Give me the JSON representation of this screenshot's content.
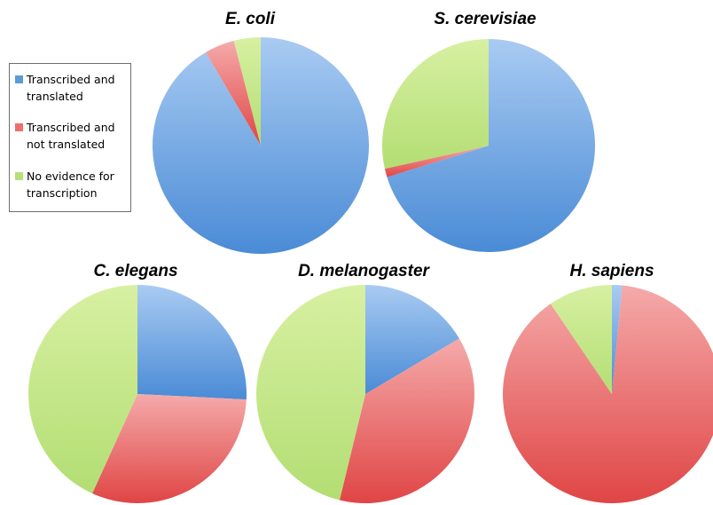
{
  "legend": {
    "items": [
      {
        "label": "Transcribed and translated",
        "color": "#5b9bd5"
      },
      {
        "label": "Transcribed and not translated",
        "color": "#ef6e6e"
      },
      {
        "label": "No evidence for transcription",
        "color": "#b5e07a"
      }
    ]
  },
  "chart_data": [
    {
      "type": "pie",
      "title": "E. coli",
      "labels": [
        "Transcribed and translated",
        "Transcribed and not translated",
        "No evidence for transcription"
      ],
      "values": [
        91.5,
        4.5,
        4.0
      ]
    },
    {
      "type": "pie",
      "title": "S. cerevisiae",
      "labels": [
        "Transcribed and translated",
        "Transcribed and not translated",
        "No evidence for transcription"
      ],
      "values": [
        70.2,
        1.3,
        28.5
      ]
    },
    {
      "type": "pie",
      "title": "C. elegans",
      "labels": [
        "Transcribed and translated",
        "Transcribed and not translated",
        "No evidence for transcription"
      ],
      "values": [
        25.8,
        31.0,
        43.2
      ]
    },
    {
      "type": "pie",
      "title": "D. melanogaster",
      "labels": [
        "Transcribed and translated",
        "Transcribed and not translated",
        "No evidence for transcription"
      ],
      "values": [
        16.5,
        37.3,
        46.2
      ]
    },
    {
      "type": "pie",
      "title": "H. sapiens",
      "labels": [
        "Transcribed and translated",
        "Transcribed and not translated",
        "No evidence for transcription"
      ],
      "values": [
        1.5,
        89.0,
        9.5
      ]
    }
  ]
}
